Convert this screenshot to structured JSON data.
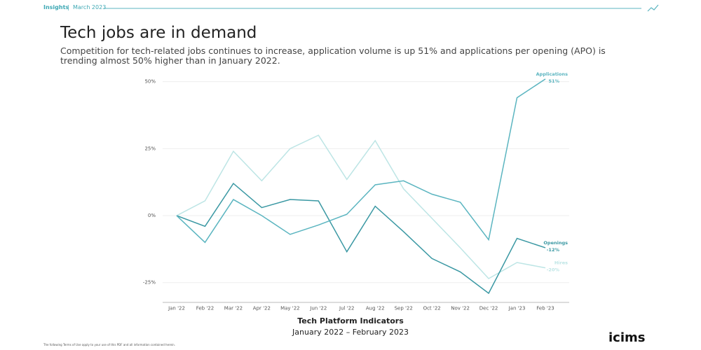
{
  "header": {
    "section": "Insights",
    "separator": "|",
    "date": "March 2023"
  },
  "title": "Tech jobs are in demand",
  "subtitle": "Competition for tech-related jobs continues to increase, application volume is up 51% and applications per opening (APO) is trending almost 50% higher than in January 2022.",
  "chart_data": {
    "type": "line",
    "title": "Tech Platform Indicators",
    "subtitle": "January 2022 – February 2023",
    "categories": [
      "Jan '22",
      "Feb '22",
      "Mar '22",
      "Apr '22",
      "May '22",
      "Jun '22",
      "Jul '22",
      "Aug '22",
      "Sep '22",
      "Oct '22",
      "Nov '22",
      "Dec '22",
      "Jan '23",
      "Feb '23"
    ],
    "series": [
      {
        "name": "Applications",
        "color": "#5bb5c0",
        "values": [
          0,
          -10,
          6,
          0,
          -7,
          -3.5,
          0.5,
          11.5,
          13,
          8,
          5,
          -9,
          44,
          51
        ],
        "value_labels": [
          null,
          null,
          null,
          null,
          null,
          null,
          null,
          null,
          null,
          null,
          null,
          null,
          null,
          "51%"
        ]
      },
      {
        "name": "Openings",
        "color": "#3a98a3",
        "values": [
          0,
          -4,
          12,
          3,
          6,
          5.5,
          -13.5,
          3.5,
          -6,
          -16,
          -21,
          -29,
          -8.5,
          -12
        ],
        "value_labels": [
          null,
          null,
          null,
          null,
          null,
          null,
          null,
          null,
          null,
          null,
          null,
          null,
          null,
          "-12%"
        ]
      },
      {
        "name": "Hires",
        "color": "#bde5e5",
        "values": [
          0,
          5.5,
          24,
          13,
          25,
          30,
          13.5,
          28,
          10,
          -1,
          -12,
          -23.5,
          -17.5,
          -19.5
        ],
        "value_labels": [
          null,
          null,
          null,
          null,
          null,
          null,
          null,
          null,
          null,
          null,
          null,
          null,
          null,
          "-20%"
        ]
      }
    ],
    "ylim": [
      -32,
      52
    ],
    "yticks": [
      {
        "value": -25,
        "label": "-25%"
      },
      {
        "value": 0,
        "label": "0%"
      },
      {
        "value": 25,
        "label": "25%"
      },
      {
        "value": 50,
        "label": "50%"
      }
    ],
    "grid": true
  },
  "footer": {
    "logo": "icims",
    "fine_print": "The following Terms of Use apply to your use of this PDF and all information contained herein."
  }
}
